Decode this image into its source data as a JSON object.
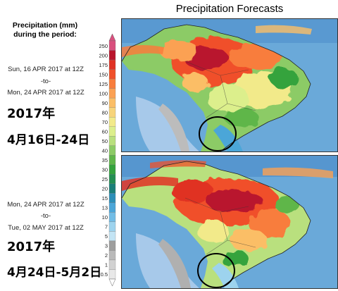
{
  "title": "Precipitation Forecasts",
  "legend": {
    "title_line1": "Precipitation (mm)",
    "title_line2": "during the period:",
    "levels": [
      "250",
      "200",
      "175",
      "150",
      "125",
      "100",
      "90",
      "80",
      "70",
      "60",
      "50",
      "40",
      "35",
      "30",
      "25",
      "20",
      "15",
      "13",
      "10",
      "7",
      "5",
      "3",
      "2",
      "1",
      "0.5"
    ],
    "colors": [
      "#d94f7e",
      "#b9152d",
      "#e03224",
      "#f0502a",
      "#f87d3c",
      "#fba153",
      "#fbbe66",
      "#f7d47a",
      "#f2ea8a",
      "#dcef8c",
      "#b9e07e",
      "#8ccb66",
      "#5fb64a",
      "#34a33d",
      "#238f52",
      "#1a7f78",
      "#2c8fb8",
      "#4ba6d8",
      "#72bde6",
      "#9dd3ee",
      "#c3e4f4",
      "#9e9e9e",
      "#b9b9b9",
      "#d2d2d2",
      "#e8e8e8"
    ]
  },
  "period1": {
    "from": "Sun, 16 APR 2017 at 12Z",
    "to": "-to-",
    "until": "Mon, 24 APR 2017 at 12Z",
    "cn_year": "2017年",
    "cn_dates": "4月16日-24日"
  },
  "period2": {
    "from": "Mon, 24 APR 2017 at 12Z",
    "to": "-to-",
    "until": "Tue, 02 MAY 2017 at 12Z",
    "cn_year": "2017年",
    "cn_dates": "4月24日-5月2日"
  },
  "colors": {
    "ocean": "#6aa9d9",
    "deep_ocean": "#4f8fcb",
    "land_dry": "#9c9c9c",
    "circle": "#000000"
  }
}
